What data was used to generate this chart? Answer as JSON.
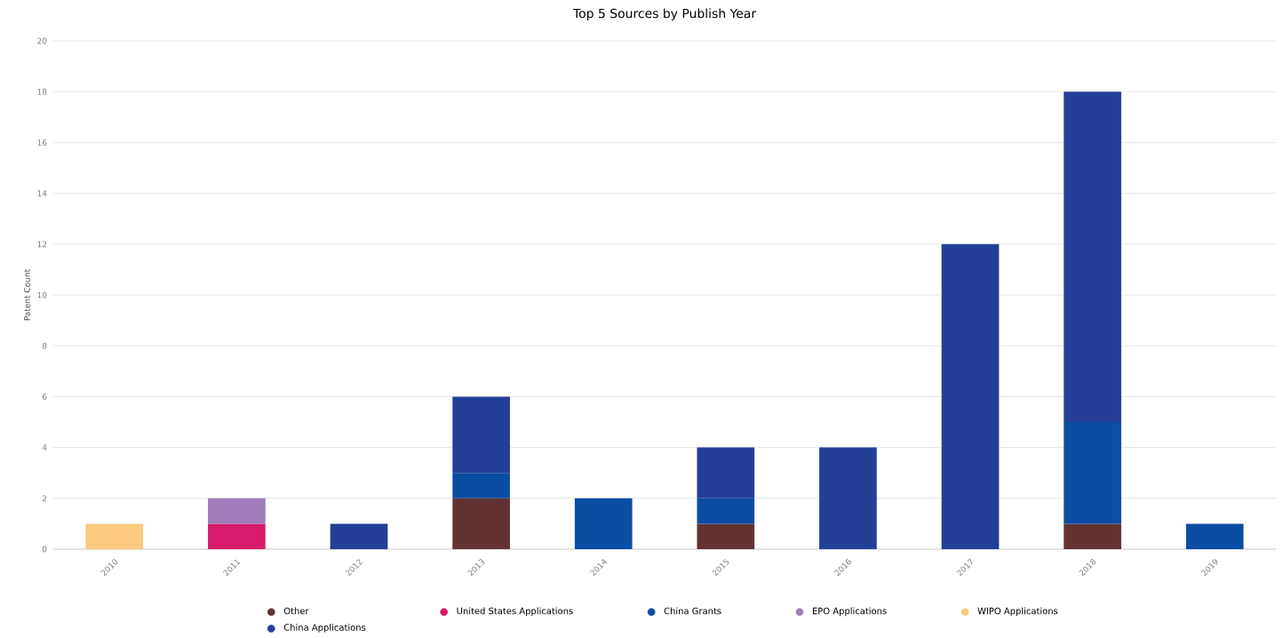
{
  "chart_data": {
    "type": "bar",
    "stacked": true,
    "title": "Top 5 Sources by Publish Year",
    "ylabel": "Patent Count",
    "categories": [
      "2010",
      "2011",
      "2012",
      "2013",
      "2014",
      "2015",
      "2016",
      "2017",
      "2018",
      "2019"
    ],
    "series": [
      {
        "name": "Other",
        "color": "#633233",
        "values": [
          null,
          null,
          null,
          2,
          null,
          1,
          null,
          null,
          1,
          null
        ]
      },
      {
        "name": "United States Applications",
        "color": "#d81b6b",
        "values": [
          null,
          1,
          null,
          null,
          null,
          null,
          null,
          null,
          null,
          null
        ]
      },
      {
        "name": "China Grants",
        "color": "#0a4ea3",
        "values": [
          null,
          null,
          null,
          1,
          2,
          1,
          null,
          null,
          4,
          1
        ]
      },
      {
        "name": "EPO Applications",
        "color": "#a07bba",
        "values": [
          null,
          1,
          null,
          null,
          null,
          null,
          null,
          null,
          null,
          null
        ]
      },
      {
        "name": "WIPO Applications",
        "color": "#fcca80",
        "values": [
          1,
          null,
          null,
          null,
          null,
          null,
          null,
          null,
          null,
          null
        ]
      },
      {
        "name": "China Applications",
        "color": "#233f97",
        "values": [
          null,
          null,
          1,
          3,
          null,
          2,
          4,
          12,
          13,
          null
        ]
      }
    ],
    "ylim": [
      0,
      20
    ],
    "yticks": [
      0,
      2,
      4,
      6,
      8,
      10,
      12,
      14,
      16,
      18,
      20
    ],
    "grid": "y",
    "legend": "bottom"
  }
}
